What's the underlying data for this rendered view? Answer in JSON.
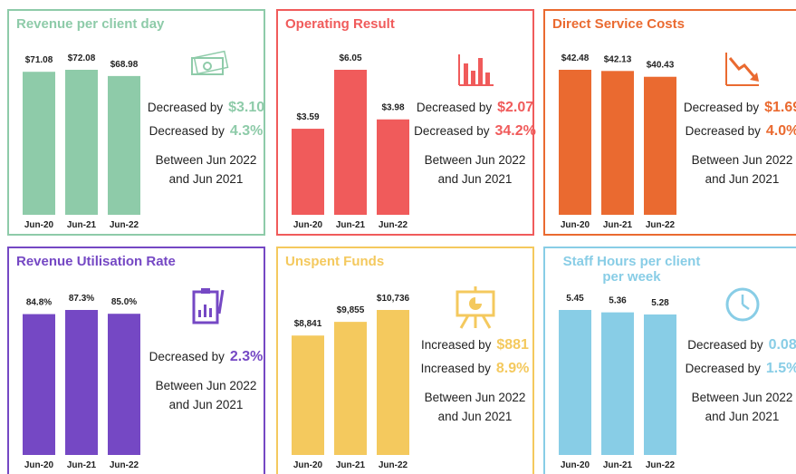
{
  "chart_data": [
    {
      "type": "bar",
      "title": "Revenue per client day",
      "color": "#8ecba9",
      "categories": [
        "Jun-20",
        "Jun-21",
        "Jun-22"
      ],
      "values": [
        71.08,
        72.08,
        68.98
      ],
      "value_labels": [
        "$71.08",
        "$72.08",
        "$68.98"
      ],
      "summary": [
        {
          "text": "Decreased by",
          "value": "$3.10"
        },
        {
          "text": "Decreased by",
          "value": "4.3%"
        }
      ],
      "note": [
        "Between Jun 2022",
        "and Jun 2021"
      ]
    },
    {
      "type": "bar",
      "title": "Operating Result",
      "color": "#f05b5b",
      "categories": [
        "Jun-20",
        "Jun-21",
        "Jun-22"
      ],
      "values": [
        3.59,
        6.05,
        3.98
      ],
      "value_labels": [
        "$3.59",
        "$6.05",
        "$3.98"
      ],
      "summary": [
        {
          "text": "Decreased by",
          "value": "$2.07"
        },
        {
          "text": "Decreased by",
          "value": "34.2%"
        }
      ],
      "note": [
        "Between Jun 2022",
        "and Jun 2021"
      ]
    },
    {
      "type": "bar",
      "title": "Direct Service Costs",
      "color": "#ea6a30",
      "categories": [
        "Jun-20",
        "Jun-21",
        "Jun-22"
      ],
      "values": [
        42.48,
        42.13,
        40.43
      ],
      "value_labels": [
        "$42.48",
        "$42.13",
        "$40.43"
      ],
      "summary": [
        {
          "text": "Decreased by",
          "value": "$1.69"
        },
        {
          "text": "Decreased by",
          "value": "4.0%"
        }
      ],
      "note": [
        "Between Jun 2022",
        "and Jun 2021"
      ]
    },
    {
      "type": "bar",
      "title": "Revenue Utilisation Rate",
      "color": "#7548c4",
      "categories": [
        "Jun-20",
        "Jun-21",
        "Jun-22"
      ],
      "values": [
        84.8,
        87.3,
        85.0
      ],
      "value_labels": [
        "84.8%",
        "87.3%",
        "85.0%"
      ],
      "summary": [
        {
          "text": "Decreased by",
          "value": "2.3%"
        }
      ],
      "note": [
        "Between Jun 2022",
        "and Jun 2021"
      ]
    },
    {
      "type": "bar",
      "title": "Unspent Funds",
      "color": "#f4c95e",
      "categories": [
        "Jun-20",
        "Jun-21",
        "Jun-22"
      ],
      "values": [
        8841,
        9855,
        10736
      ],
      "value_labels": [
        "$8,841",
        "$9,855",
        "$10,736"
      ],
      "summary": [
        {
          "text": "Increased by",
          "value": "$881"
        },
        {
          "text": "Increased by",
          "value": "8.9%"
        }
      ],
      "note": [
        "Between Jun 2022",
        "and Jun 2021"
      ]
    },
    {
      "type": "bar",
      "title": "Staff Hours per client per week",
      "color": "#88cde6",
      "categories": [
        "Jun-20",
        "Jun-21",
        "Jun-22"
      ],
      "values": [
        5.45,
        5.36,
        5.28
      ],
      "summary": [
        {
          "text": "Decreased by",
          "value": "0.08"
        },
        {
          "text": "Decreased by",
          "value": "1.5%"
        }
      ],
      "note": [
        "Between Jun 2022",
        "and Jun 2021"
      ]
    }
  ]
}
